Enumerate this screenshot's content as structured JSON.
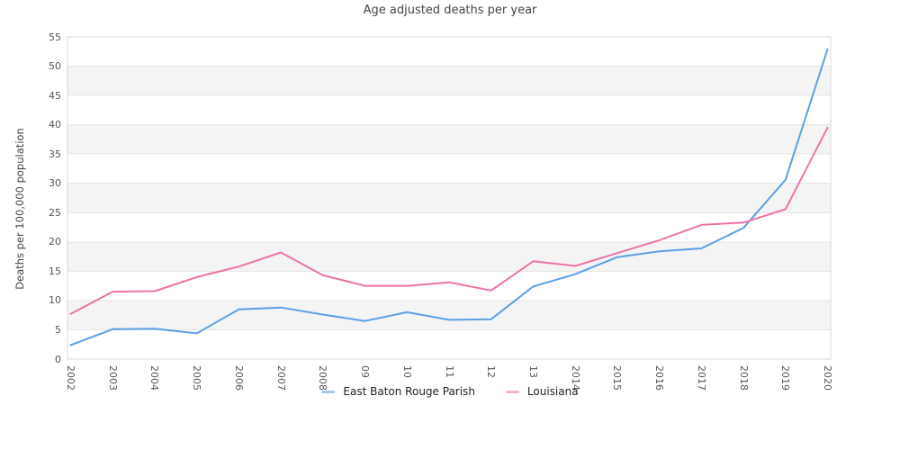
{
  "title": "Age adjusted deaths per year",
  "style": {
    "background": "#ffffff",
    "band_fill": "#f4f4f4",
    "grid_color": "#e6e6e6",
    "border_color": "#d9d9d9",
    "tick_text_color": "#555555",
    "title_text_color": "#444444",
    "legend_text_color": "#222222"
  },
  "chart_data": {
    "type": "line",
    "title": "Age adjusted deaths per year",
    "xlabel": "",
    "ylabel": "Deaths per 100,000 population",
    "ylim": [
      0,
      55
    ],
    "ytick_step": 5,
    "grid": true,
    "background_bands": "gray bands at 5-10, 15-20, 25-30, 35-40, 45-50",
    "legend_position": "bottom-center",
    "categories": [
      "2002",
      "2003",
      "2004",
      "2005",
      "2006",
      "2007",
      "2008",
      "09",
      "10",
      "11",
      "12",
      "13",
      "2014",
      "2015",
      "2016",
      "2017",
      "2018",
      "2019",
      "2020"
    ],
    "series": [
      {
        "name": "East Baton Rouge Parish",
        "color": "#5aa0e6",
        "values": [
          2.4,
          5.1,
          5.2,
          4.4,
          8.5,
          8.8,
          7.6,
          6.5,
          8.0,
          6.7,
          6.8,
          12.4,
          14.5,
          17.4,
          18.4,
          18.9,
          22.4,
          30.6,
          52.9
        ]
      },
      {
        "name": "Louisiana",
        "color": "#ee72a7",
        "values": [
          7.7,
          11.5,
          11.6,
          14.0,
          15.8,
          18.2,
          14.3,
          12.5,
          12.5,
          13.1,
          11.7,
          16.7,
          15.9,
          18.1,
          20.3,
          22.9,
          23.3,
          25.6,
          39.5
        ]
      }
    ]
  }
}
